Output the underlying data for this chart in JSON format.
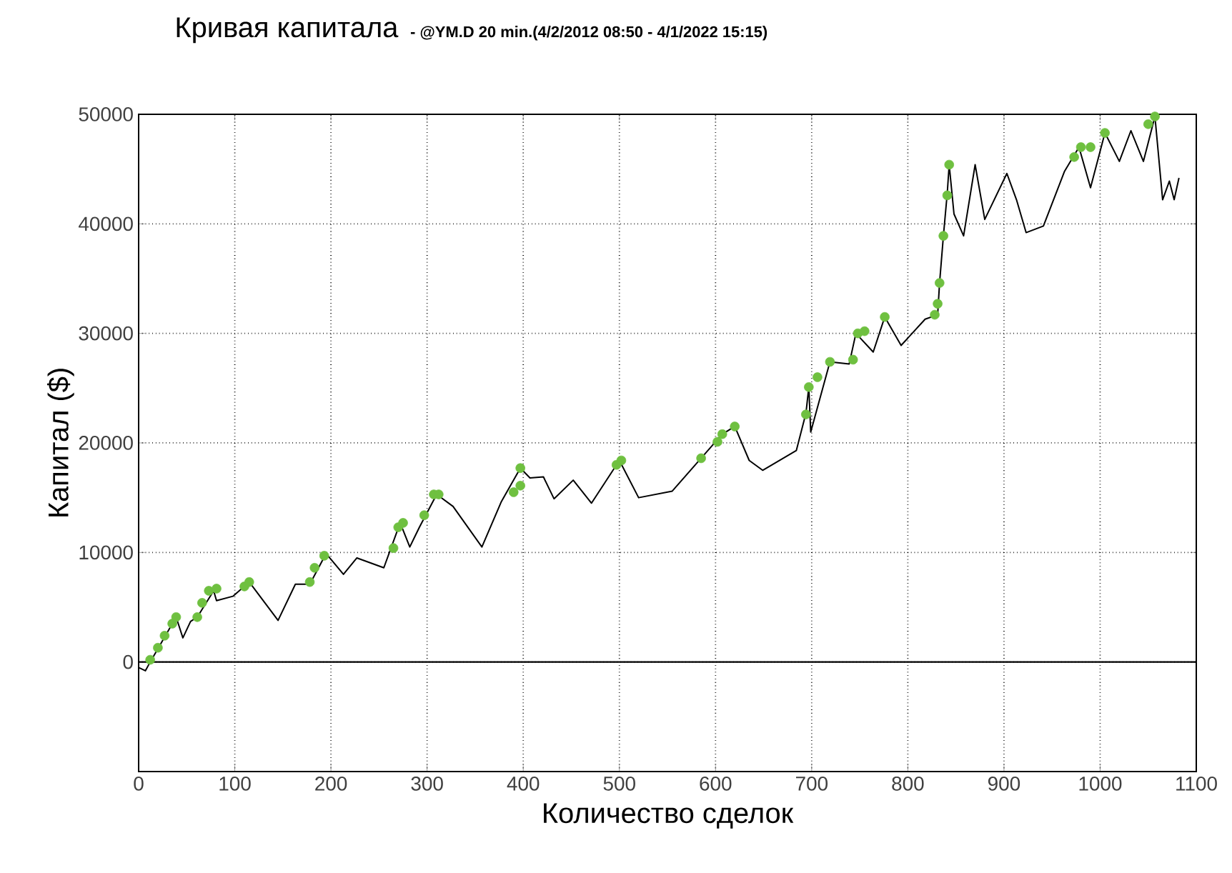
{
  "chart_data": {
    "type": "line",
    "title": "Кривая капитала",
    "subtitle": "- @YM.D 20 min.(4/2/2012 08:50 - 4/1/2022 15:15)",
    "xlabel": "Количество сделок",
    "ylabel": "Капитал ($)",
    "xlim": [
      0,
      1100
    ],
    "ylim": [
      -10000,
      50000
    ],
    "xticks": [
      0,
      100,
      200,
      300,
      400,
      500,
      600,
      700,
      800,
      900,
      1000,
      1100
    ],
    "yticks": [
      0,
      10000,
      20000,
      30000,
      40000,
      50000
    ],
    "grid": true,
    "ref_lines": [
      {
        "axis": "y",
        "value": 0,
        "color": "#000000",
        "line_style": "solid"
      }
    ],
    "series": [
      {
        "color": "#000000",
        "marker": "none",
        "line_style": "solid",
        "x": [
          0,
          7,
          12,
          39,
          46,
          54,
          61,
          78,
          81,
          98,
          115,
          145,
          163,
          178,
          195,
          213,
          227,
          255,
          272,
          282,
          292,
          310,
          327,
          357,
          377,
          397,
          407,
          421,
          432,
          452,
          471,
          500,
          520,
          555,
          585,
          607,
          620,
          635,
          649,
          684,
          694,
          697,
          699,
          719,
          739,
          746,
          764,
          776,
          793,
          818,
          831,
          833,
          837,
          841,
          843,
          848,
          858,
          870,
          880,
          903,
          913,
          923,
          941,
          963,
          978,
          990,
          1005,
          1020,
          1032,
          1045,
          1057,
          1065,
          1072,
          1077,
          1082
        ],
        "values": [
          -500,
          -800,
          0,
          4100,
          2200,
          3700,
          4100,
          6500,
          5600,
          6000,
          7300,
          3800,
          7100,
          7100,
          9900,
          8000,
          9500,
          8600,
          12700,
          10500,
          12300,
          15300,
          14200,
          10500,
          14600,
          17700,
          16800,
          16900,
          14900,
          16600,
          14500,
          18400,
          15000,
          15600,
          18600,
          20800,
          21500,
          18400,
          17500,
          19300,
          22700,
          25100,
          21000,
          27400,
          27200,
          30000,
          28300,
          31500,
          28900,
          31300,
          31700,
          34600,
          38900,
          42800,
          45400,
          40900,
          38900,
          45400,
          40400,
          44600,
          42200,
          39200,
          39800,
          44800,
          47000,
          43300,
          48300,
          45700,
          48500,
          45700,
          49800,
          42200,
          43900,
          42200,
          44200
        ]
      },
      {
        "type": "scatter",
        "color": "#6fc040",
        "marker": "circle",
        "x": [
          12,
          20,
          27,
          35,
          39,
          61,
          66,
          73,
          81,
          110,
          115,
          178,
          183,
          193,
          265,
          270,
          275,
          297,
          307,
          312,
          390,
          397,
          397,
          497,
          502,
          585,
          602,
          607,
          620,
          694,
          697,
          706,
          719,
          743,
          748,
          755,
          776,
          828,
          831,
          833,
          837,
          841,
          843,
          973,
          980,
          990,
          1005,
          1050,
          1057
        ],
        "values": [
          200,
          1300,
          2400,
          3500,
          4100,
          4100,
          5400,
          6500,
          6700,
          6900,
          7300,
          7300,
          8600,
          9700,
          10400,
          12300,
          12700,
          13400,
          15300,
          15300,
          15500,
          16100,
          17700,
          18000,
          18400,
          18600,
          20100,
          20800,
          21500,
          22600,
          25100,
          26000,
          27400,
          27600,
          30000,
          30200,
          31500,
          31700,
          32700,
          34600,
          38900,
          42600,
          45400,
          46100,
          47000,
          47000,
          48300,
          49100,
          49800
        ]
      }
    ]
  }
}
